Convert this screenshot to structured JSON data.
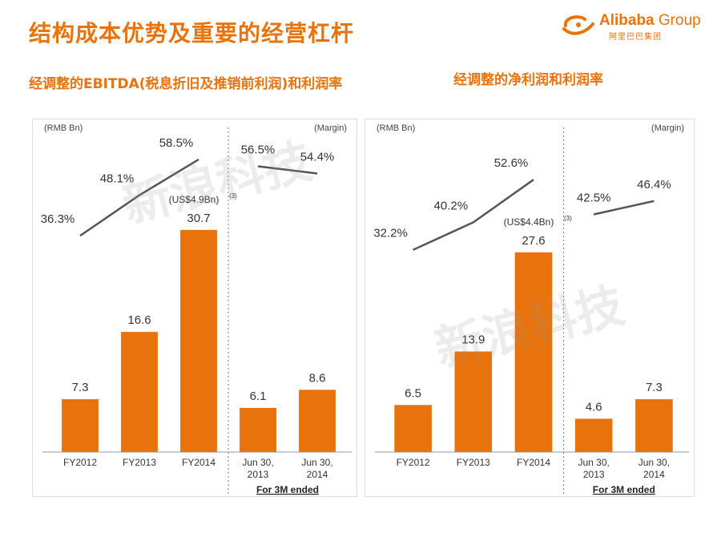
{
  "slide": {
    "title": "结构成本优势及重要的经营杠杆",
    "logo_en_bold": "Alibaba",
    "logo_en_light": " Group",
    "logo_cn": "阿里巴巴集团",
    "brand_color": "#e8730c",
    "watermark": "新浪科技"
  },
  "chart_data": [
    {
      "type": "bar",
      "title": "经调整的EBITDA(税息折旧及推销前利润)和利润率",
      "unit_label": "(RMB Bn)",
      "margin_label": "(Margin)",
      "categories": [
        "FY2012",
        "FY2013",
        "FY2014",
        "Jun 30,\n2013",
        "Jun 30,\n2014"
      ],
      "values": [
        7.3,
        16.6,
        30.7,
        6.1,
        8.6
      ],
      "value_labels": [
        "7.3",
        "16.6",
        "30.7",
        "6.1",
        "8.6"
      ],
      "margins": [
        36.3,
        48.1,
        58.5,
        56.5,
        54.4
      ],
      "margin_labels": [
        "36.3%",
        "48.1%",
        "58.5%",
        "56.5%",
        "54.4%"
      ],
      "usd_note": "(US$4.9Bn)",
      "usd_note_sup": "(3)",
      "group_label": "For 3M ended",
      "ylim": [
        0,
        36
      ],
      "margin_lim": [
        20,
        65
      ],
      "bar_color": "#e8730c",
      "line_color": "#555555"
    },
    {
      "type": "bar",
      "title": "经调整的净利润和利润率",
      "unit_label": "(RMB Bn)",
      "margin_label": "(Margin)",
      "categories": [
        "FY2012",
        "FY2013",
        "FY2014",
        "Jun 30,\n2013",
        "Jun 30,\n2014"
      ],
      "values": [
        6.5,
        13.9,
        27.6,
        4.6,
        7.3
      ],
      "value_labels": [
        "6.5",
        "13.9",
        "27.6",
        "4.6",
        "7.3"
      ],
      "margins": [
        32.2,
        40.2,
        52.6,
        42.5,
        46.4
      ],
      "margin_labels": [
        "32.2%",
        "40.2%",
        "52.6%",
        "42.5%",
        "46.4%"
      ],
      "usd_note": "(US$4.4Bn)",
      "usd_note_sup": "(3)",
      "group_label": "For 3M ended",
      "ylim": [
        0,
        36
      ],
      "margin_lim": [
        20,
        65
      ],
      "bar_color": "#e8730c",
      "line_color": "#555555"
    }
  ]
}
